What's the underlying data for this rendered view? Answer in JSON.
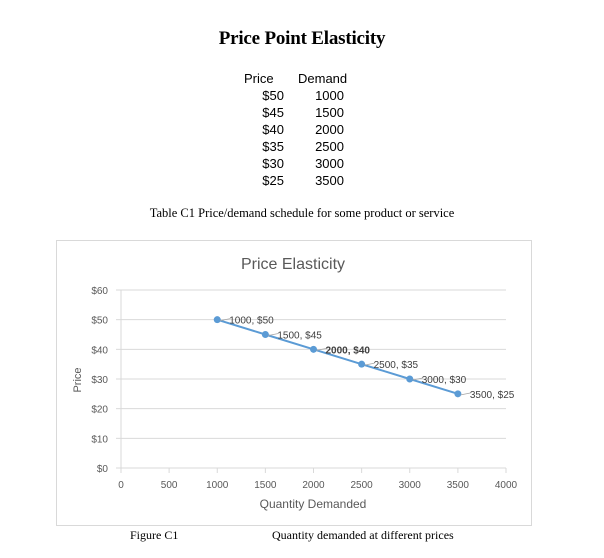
{
  "document": {
    "title": "Price Point Elasticity",
    "table": {
      "headers": {
        "price": "Price",
        "demand": "Demand"
      },
      "rows": [
        {
          "price": "$50",
          "demand": "1000"
        },
        {
          "price": "$45",
          "demand": "1500"
        },
        {
          "price": "$40",
          "demand": "2000"
        },
        {
          "price": "$35",
          "demand": "2500"
        },
        {
          "price": "$30",
          "demand": "3000"
        },
        {
          "price": "$25",
          "demand": "3500"
        }
      ]
    },
    "table_caption": "Table C1 Price/demand schedule for some product or service",
    "figure_label": "Figure C1",
    "figure_caption": "Quantity demanded at different prices"
  },
  "colors": {
    "line": "#5b9bd5",
    "grid": "#d9d9d9",
    "axis_text": "#595959"
  },
  "chart_data": {
    "type": "line",
    "title": "Price Elasticity",
    "xlabel": "Quantity Demanded",
    "ylabel": "Price",
    "xlim": [
      0,
      4000
    ],
    "ylim": [
      0,
      60
    ],
    "xticks": [
      0,
      500,
      1000,
      1500,
      2000,
      2500,
      3000,
      3500,
      4000
    ],
    "xtick_labels": [
      "0",
      "500",
      "1000",
      "1500",
      "2000",
      "2500",
      "3000",
      "3500",
      "4000"
    ],
    "yticks": [
      0,
      10,
      20,
      30,
      40,
      50,
      60
    ],
    "ytick_labels": [
      "$0",
      "$10",
      "$20",
      "$30",
      "$40",
      "$50",
      "$60"
    ],
    "grid": true,
    "series": [
      {
        "name": "Price",
        "x": [
          1000,
          1500,
          2000,
          2500,
          3000,
          3500
        ],
        "y": [
          50,
          45,
          40,
          35,
          30,
          25
        ],
        "labels": [
          "1000, $50",
          "1500, $45",
          "2000, $40",
          "2500, $35",
          "3000, $30",
          "3500, $25"
        ],
        "bold_label_index": 2
      }
    ]
  }
}
